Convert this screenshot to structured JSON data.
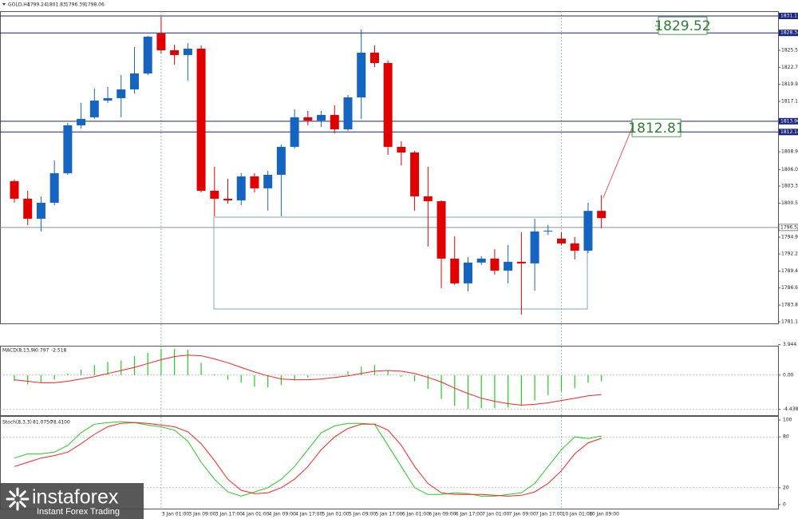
{
  "chart_data": [
    {
      "type": "candlestick",
      "title": "GOLD,H4",
      "categories": [
        null,
        null,
        null,
        null,
        null,
        null,
        null,
        null,
        null,
        null,
        null,
        "3 Jan 01:00",
        null,
        "3 Jan 09:00",
        null,
        "3 Jan 17:00",
        null,
        "4 Jan 01:00",
        null,
        "4 Jan 09:00",
        null,
        "4 Jan 17:00",
        null,
        "5 Jan 01:00",
        null,
        "5 Jan 09:00",
        null,
        "5 Jan 17:00",
        null,
        "6 Jan 01:00",
        null,
        "6 Jan 09:00",
        null,
        "6 Jan 17:00",
        null,
        "7 Jan 01:00",
        null,
        "7 Jan 09:00",
        null,
        "7 Jan 17:00",
        null,
        "10 Jan 01:00",
        null,
        "10 Jan 09:00",
        null
      ],
      "open": [
        1804.1,
        1801.23,
        1797.96,
        1800.57,
        1805.4,
        1813.23,
        1814.54,
        1817.28,
        1817.67,
        1819.1,
        1821.71,
        1828.24,
        1825.5,
        1824.72,
        1825.76,
        1802.53,
        1801.23,
        1800.96,
        1804.88,
        1802.93,
        1805.14,
        1809.71,
        1814.54,
        1814.01,
        1814.93,
        1812.58,
        1817.8,
        1825.11,
        1823.41,
        1809.71,
        1808.79,
        1801.62,
        1800.83,
        1791.44,
        1787.39,
        1790.79,
        1791.44,
        1789.48,
        1790.92,
        1790.66,
        1795.88,
        1794.7,
        1793.92,
        1792.74,
        1799.24
      ],
      "high": [
        1804.36,
        1802.53,
        1801.62,
        1807.49,
        1813.62,
        1816.89,
        1819.23,
        1819.5,
        1821.45,
        1826.02,
        1827.85,
        1830.98,
        1826.41,
        1826.67,
        1826.28,
        1806.45,
        1804.49,
        1805.4,
        1805.4,
        1805.79,
        1810.1,
        1815.84,
        1815.58,
        1815.58,
        1816.49,
        1818.19,
        1828.89,
        1826.28,
        1823.8,
        1810.62,
        1809.06,
        1806.45,
        1800.96,
        1795.09,
        1791.7,
        1791.83,
        1793.0,
        1793.66,
        1795.74,
        1797.96,
        1796.92,
        1795.74,
        1794.96,
        1800.57,
        1801.83
      ],
      "low": [
        1800.57,
        1796.92,
        1795.88,
        1800.18,
        1805.14,
        1812.71,
        1814.28,
        1816.89,
        1814.54,
        1818.45,
        1821.45,
        1824.98,
        1823.15,
        1820.54,
        1802.27,
        1798.35,
        1800.44,
        1800.18,
        1802.27,
        1799.27,
        1798.35,
        1809.45,
        1813.23,
        1812.97,
        1811.93,
        1812.32,
        1814.28,
        1822.76,
        1808.4,
        1806.71,
        1799.27,
        1793.4,
        1786.61,
        1787.13,
        1786.09,
        1790.4,
        1788.83,
        1787.39,
        1782.3,
        1786.22,
        1795.35,
        1793.66,
        1791.31,
        1792.35,
        1796.39
      ],
      "close": [
        1801.23,
        1797.96,
        1800.57,
        1805.4,
        1813.23,
        1814.28,
        1817.28,
        1817.67,
        1819.1,
        1821.71,
        1827.72,
        1825.5,
        1824.72,
        1825.76,
        1802.53,
        1801.23,
        1800.96,
        1804.88,
        1802.93,
        1805.14,
        1809.71,
        1814.54,
        1814.01,
        1814.93,
        1812.58,
        1817.8,
        1825.11,
        1823.41,
        1809.71,
        1808.79,
        1801.62,
        1800.83,
        1791.44,
        1787.39,
        1790.79,
        1791.44,
        1789.48,
        1790.92,
        1790.66,
        1795.88,
        1796.01,
        1793.92,
        1792.74,
        1799.24,
        1798.06
      ],
      "up_color": "#1565c0",
      "down_color": "#e00000",
      "ylim": [
        1780.85,
        1831.89
      ],
      "yticks": [
        {
          "value": 1825.5,
          "label": "1825.50"
        },
        {
          "value": 1822.7,
          "label": "1822.70"
        },
        1819.95,
        1817.15,
        {
          "value": 1808.9,
          "label": "1808.90"
        },
        {
          "value": 1806,
          "label": "1806.00"
        },
        {
          "value": 1803.3,
          "label": "1803.30"
        },
        {
          "value": 1800.5,
          "label": "1800.50"
        },
        1794.95,
        {
          "value": 1792.2,
          "label": "1792.20"
        },
        {
          "value": 1789.4,
          "label": "1789.40"
        },
        1786.65,
        1783.85,
        {
          "value": 1781.1,
          "label": "1781.10"
        }
      ],
      "levels": [
        1831.11,
        1828.34,
        {
          "value": 1813.9,
          "label": "1813.90"
        },
        1812.14
      ],
      "level_color": "#1a237e",
      "current_price": 1796.53,
      "annotations": [
        1829.52,
        1812.81
      ]
    },
    {
      "type": "macd",
      "title": "MACD(8,13,9)",
      "series": [
        {
          "name": "MACD",
          "color": "#22cc22",
          "values": [
            -0.8,
            -1.2,
            -1.0,
            -0.6,
            0.2,
            0.7,
            1.3,
            1.7,
            1.9,
            2.5,
            2.9,
            3.4,
            3.4,
            3.3,
            1.6,
            0.1,
            -0.6,
            -1.0,
            -1.5,
            -1.6,
            -1.3,
            -0.7,
            -0.3,
            0,
            0.1,
            0.5,
            1.1,
            1.3,
            0.6,
            -0.2,
            -0.8,
            -1.8,
            -3.1,
            -4.0,
            -4.4,
            -4.3,
            -4.3,
            -4.2,
            -4.0,
            -3.3,
            -2.6,
            -2.1,
            -1.7,
            -1.0,
            -0.797
          ]
        },
        {
          "name": "Signal",
          "color": "#ff2020",
          "values": [
            -0.6,
            -0.8,
            -1.0,
            -1.0,
            -0.8,
            -0.5,
            -0.2,
            0.2,
            0.6,
            1.0,
            1.5,
            2.0,
            2.4,
            2.6,
            2.5,
            2.1,
            1.6,
            1.0,
            0.4,
            -0.1,
            -0.5,
            -0.6,
            -0.6,
            -0.5,
            -0.3,
            -0.1,
            0.2,
            0.5,
            0.6,
            0.5,
            0.2,
            -0.3,
            -0.9,
            -1.7,
            -2.4,
            -3.0,
            -3.4,
            -3.7,
            -3.9,
            -3.8,
            -3.6,
            -3.3,
            -3.0,
            -2.7,
            -2.518
          ]
        }
      ],
      "ylim": [
        -5,
        3.5
      ],
      "yticks": [
        3.944,
        {
          "value": 0,
          "label": "0.00"
        },
        -4.438
      ]
    },
    {
      "type": "stochastic",
      "title": "Stoch(8,3,3)",
      "series": [
        {
          "name": "Main",
          "color": "#22cc22",
          "values": [
            55,
            60,
            60,
            62,
            70,
            85,
            95,
            97,
            98,
            97,
            94,
            92,
            88,
            75,
            50,
            30,
            15,
            10,
            15,
            20,
            30,
            45,
            65,
            85,
            93,
            96,
            96,
            95,
            70,
            45,
            20,
            12,
            12,
            14,
            13,
            10,
            10,
            12,
            14,
            25,
            45,
            65,
            80,
            78,
            81.075
          ],
          "value_labels": [
            null,
            null,
            null,
            null,
            null,
            null,
            null,
            null,
            null,
            null,
            null,
            null,
            null,
            null,
            null,
            null,
            null,
            null,
            null,
            null,
            null,
            null,
            null,
            null,
            null,
            null,
            null,
            null,
            null,
            null,
            null,
            null,
            null,
            null,
            null,
            null,
            null,
            null,
            null,
            null,
            null,
            null,
            null,
            null,
            "81.0750"
          ]
        },
        {
          "name": "Signal",
          "color": "#ff2020",
          "values": [
            45,
            50,
            55,
            58,
            62,
            72,
            83,
            92,
            96,
            97,
            96,
            94,
            92,
            86,
            72,
            52,
            30,
            17,
            13,
            14,
            20,
            30,
            45,
            65,
            80,
            90,
            95,
            95,
            88,
            70,
            45,
            25,
            14,
            12,
            12,
            12,
            11,
            10,
            11,
            15,
            25,
            40,
            60,
            73,
            78.41
          ],
          "value_labels": [
            null,
            null,
            null,
            null,
            null,
            null,
            null,
            null,
            null,
            null,
            null,
            null,
            null,
            null,
            null,
            null,
            null,
            null,
            null,
            null,
            null,
            null,
            null,
            null,
            null,
            null,
            null,
            null,
            null,
            null,
            null,
            null,
            null,
            null,
            null,
            null,
            null,
            null,
            null,
            null,
            null,
            null,
            null,
            null,
            "78.4100"
          ]
        }
      ],
      "ylim": [
        0,
        100
      ],
      "yticks": [
        100,
        80,
        20,
        0
      ]
    }
  ],
  "watermark": {
    "brand": "instaforex",
    "tagline": "Instant Forex Trading"
  }
}
